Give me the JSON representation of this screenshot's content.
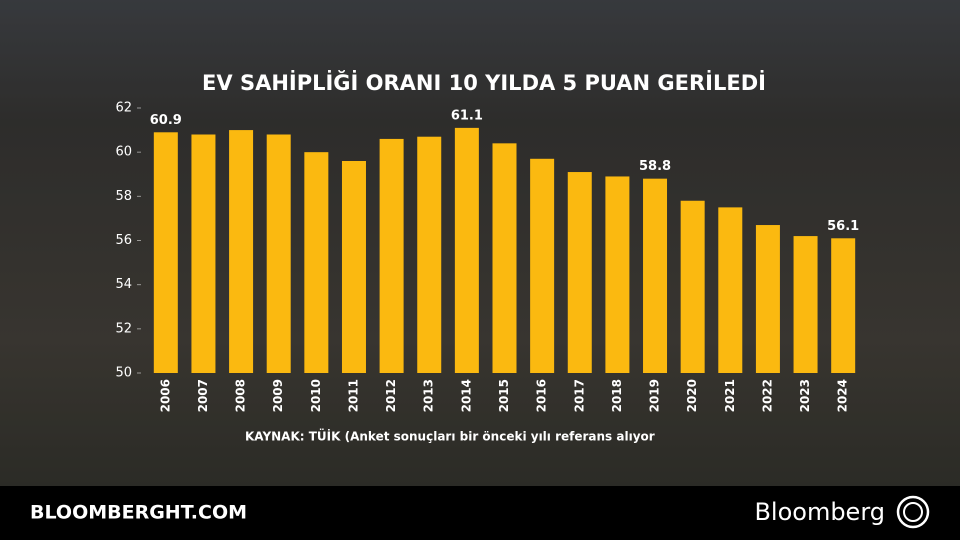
{
  "chart_data": {
    "type": "bar",
    "title": "EV SAHİPLİĞİ ORANI 10 YILDA 5 PUAN GERİLEDİ",
    "categories": [
      "2006",
      "2007",
      "2008",
      "2009",
      "2010",
      "2011",
      "2012",
      "2013",
      "2014",
      "2015",
      "2016",
      "2017",
      "2018",
      "2019",
      "2020",
      "2021",
      "2022",
      "2023",
      "2024"
    ],
    "values": [
      60.9,
      60.8,
      61.0,
      60.8,
      60.0,
      59.6,
      60.6,
      60.7,
      61.1,
      60.4,
      59.7,
      59.1,
      58.9,
      58.8,
      57.8,
      57.5,
      56.7,
      56.2,
      56.1
    ],
    "value_labels": [
      "60.9",
      null,
      null,
      null,
      null,
      null,
      null,
      null,
      "61.1",
      null,
      null,
      null,
      null,
      "58.8",
      null,
      null,
      null,
      null,
      "56.1"
    ],
    "color": "#fbb910",
    "ylim": [
      50,
      62
    ],
    "yticks": [
      50,
      52,
      54,
      56,
      58,
      60,
      62
    ],
    "source": "KAYNAK: TÜİK (Anket sonuçları bir önceki yılı referans alıyor"
  },
  "footer": {
    "site": "BLOOMBERGHT.COM",
    "brand": "Bloomberg"
  }
}
